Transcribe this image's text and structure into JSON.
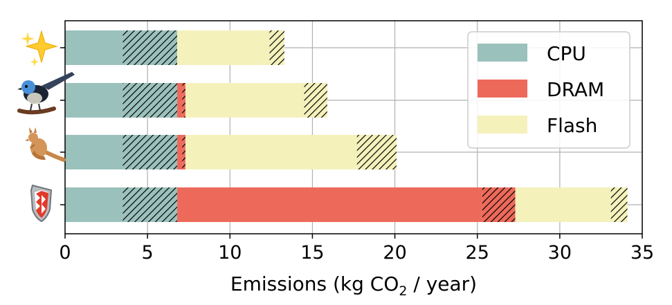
{
  "chart_data": {
    "type": "bar",
    "orientation": "horizontal",
    "stacked": true,
    "xlabel_parts": {
      "before": "Emissions (kg CO",
      "sub": "2",
      "after": " / year)"
    },
    "xlim": [
      0,
      35
    ],
    "xticks": [
      0,
      5,
      10,
      15,
      20,
      25,
      30,
      35
    ],
    "grid": true,
    "legend_position": "top-right",
    "categories": [
      "sparkles",
      "bird",
      "kangaroo",
      "shield"
    ],
    "category_icons": [
      "sparkles-icon",
      "fairy-wren-icon",
      "kangaroo-icon",
      "shield-icon"
    ],
    "series": [
      {
        "name": "CPU",
        "color": "#9bc1bc",
        "solid": [
          3.5,
          3.5,
          3.5,
          3.5
        ],
        "hatched": [
          3.3,
          3.3,
          3.3,
          3.3
        ]
      },
      {
        "name": "DRAM",
        "color": "#ed6a5a",
        "solid": [
          0,
          0.3,
          0.3,
          18.5
        ],
        "hatched": [
          0,
          0.2,
          0.2,
          2.0
        ]
      },
      {
        "name": "Flash",
        "color": "#f4f1bb",
        "solid": [
          5.6,
          7.2,
          10.4,
          5.8
        ],
        "hatched": [
          0.9,
          1.4,
          2.4,
          1.0
        ]
      }
    ]
  }
}
